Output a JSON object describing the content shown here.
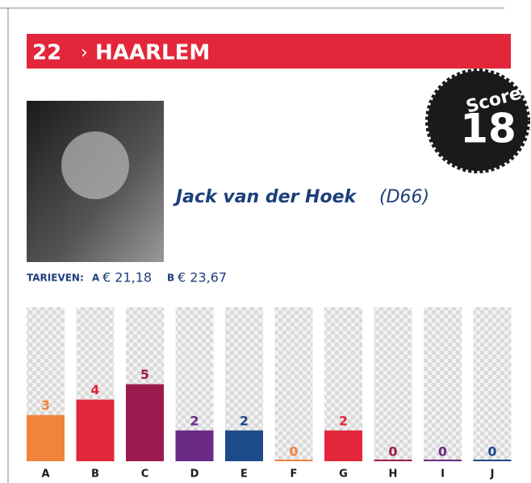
{
  "header": {
    "number": "22",
    "separator": "›",
    "city": "HAARLEM"
  },
  "score": {
    "label": "Score",
    "value": "18"
  },
  "person": {
    "name": "Jack van der Hoek",
    "party": "(D66)"
  },
  "tariffs": {
    "label": "TARIEVEN:",
    "items": [
      {
        "key": "A",
        "value": "€ 21,18"
      },
      {
        "key": "B",
        "value": "€ 23,67"
      }
    ]
  },
  "chart_data": {
    "type": "bar",
    "categories": [
      "A",
      "B",
      "C",
      "D",
      "E",
      "F",
      "G",
      "H",
      "I",
      "J"
    ],
    "values": [
      3,
      4,
      5,
      2,
      2,
      0,
      2,
      0,
      0,
      0
    ],
    "colors": [
      "#f0843c",
      "#e3263a",
      "#9c1b4f",
      "#6a2a86",
      "#1d4a8a",
      "#f0843c",
      "#e3263a",
      "#9c1b4f",
      "#6a2a86",
      "#1d4a8a"
    ],
    "ylim": [
      0,
      10
    ]
  }
}
